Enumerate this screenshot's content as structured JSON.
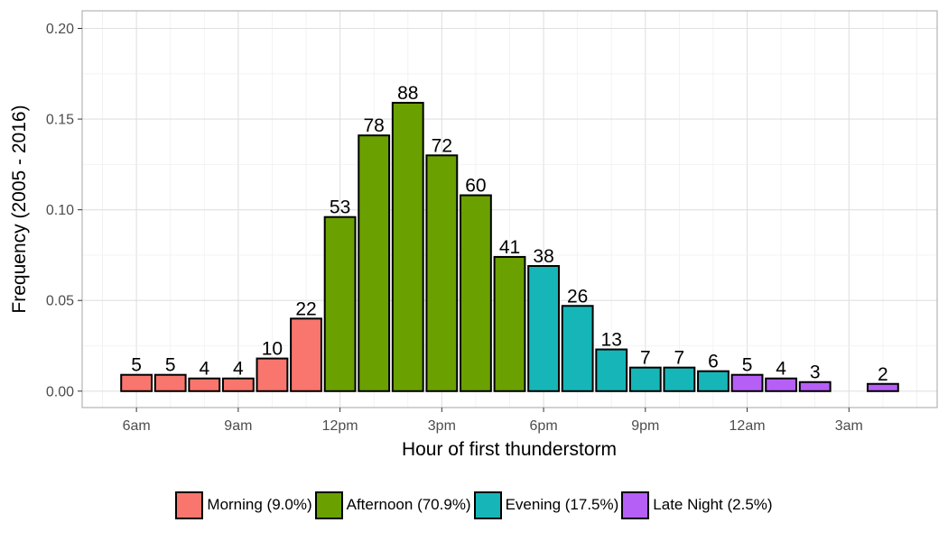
{
  "chart_data": {
    "type": "bar",
    "xlabel": "Hour of first thunderstorm",
    "ylabel": "Frequency (2005 - 2016)",
    "ylim": [
      0,
      0.2
    ],
    "yticks": [
      0.0,
      0.05,
      0.1,
      0.15,
      0.2
    ],
    "ytick_labels": [
      "0.00",
      "0.05",
      "0.10",
      "0.15",
      "0.20"
    ],
    "xticks": [
      {
        "hour": 6,
        "label": "6am"
      },
      {
        "hour": 9,
        "label": "9am"
      },
      {
        "hour": 12,
        "label": "12pm"
      },
      {
        "hour": 15,
        "label": "3pm"
      },
      {
        "hour": 18,
        "label": "6pm"
      },
      {
        "hour": 21,
        "label": "9pm"
      },
      {
        "hour": 24,
        "label": "12am"
      },
      {
        "hour": 27,
        "label": "3am"
      }
    ],
    "grid": true,
    "legend_position": "bottom",
    "bars": [
      {
        "hour": 6,
        "count": 5,
        "frequency": 0.009,
        "period": "morning"
      },
      {
        "hour": 7,
        "count": 5,
        "frequency": 0.009,
        "period": "morning"
      },
      {
        "hour": 8,
        "count": 4,
        "frequency": 0.007,
        "period": "morning"
      },
      {
        "hour": 9,
        "count": 4,
        "frequency": 0.007,
        "period": "morning"
      },
      {
        "hour": 10,
        "count": 10,
        "frequency": 0.018,
        "period": "morning"
      },
      {
        "hour": 11,
        "count": 22,
        "frequency": 0.04,
        "period": "morning"
      },
      {
        "hour": 12,
        "count": 53,
        "frequency": 0.096,
        "period": "afternoon"
      },
      {
        "hour": 13,
        "count": 78,
        "frequency": 0.141,
        "period": "afternoon"
      },
      {
        "hour": 14,
        "count": 88,
        "frequency": 0.159,
        "period": "afternoon"
      },
      {
        "hour": 15,
        "count": 72,
        "frequency": 0.13,
        "period": "afternoon"
      },
      {
        "hour": 16,
        "count": 60,
        "frequency": 0.108,
        "period": "afternoon"
      },
      {
        "hour": 17,
        "count": 41,
        "frequency": 0.074,
        "period": "afternoon"
      },
      {
        "hour": 18,
        "count": 38,
        "frequency": 0.069,
        "period": "evening"
      },
      {
        "hour": 19,
        "count": 26,
        "frequency": 0.047,
        "period": "evening"
      },
      {
        "hour": 20,
        "count": 13,
        "frequency": 0.023,
        "period": "evening"
      },
      {
        "hour": 21,
        "count": 7,
        "frequency": 0.013,
        "period": "evening"
      },
      {
        "hour": 22,
        "count": 7,
        "frequency": 0.013,
        "period": "evening"
      },
      {
        "hour": 23,
        "count": 6,
        "frequency": 0.011,
        "period": "evening"
      },
      {
        "hour": 24,
        "count": 5,
        "frequency": 0.009,
        "period": "late_night"
      },
      {
        "hour": 25,
        "count": 4,
        "frequency": 0.007,
        "period": "late_night"
      },
      {
        "hour": 26,
        "count": 3,
        "frequency": 0.005,
        "period": "late_night"
      },
      {
        "hour": 28,
        "count": 2,
        "frequency": 0.004,
        "period": "late_night"
      }
    ],
    "legend": [
      {
        "key": "morning",
        "label": "Morning (9.0%)",
        "color": "#F8766D"
      },
      {
        "key": "afternoon",
        "label": "Afternoon (70.9%)",
        "color": "#6AA000"
      },
      {
        "key": "evening",
        "label": "Evening (17.5%)",
        "color": "#16B6B8"
      },
      {
        "key": "late_night",
        "label": "Late Night (2.5%)",
        "color": "#B55FF7"
      }
    ]
  }
}
